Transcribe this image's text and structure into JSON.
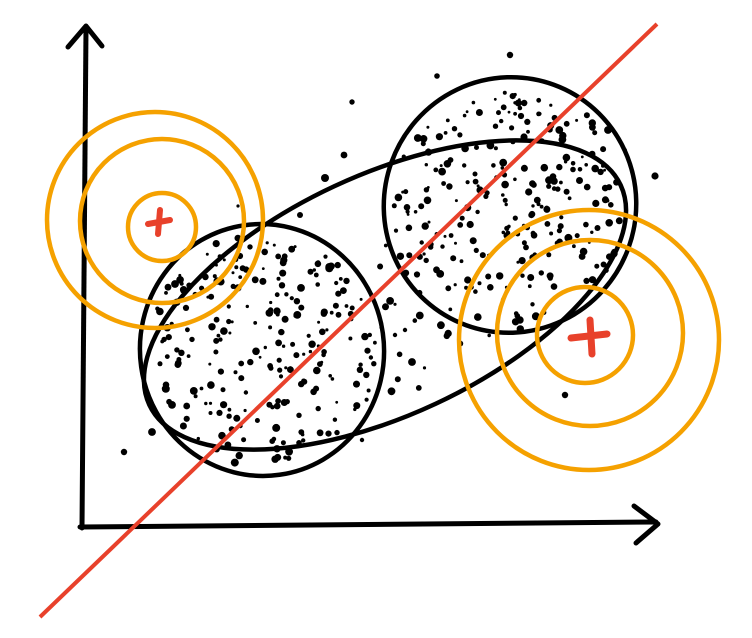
{
  "diagram": {
    "type": "clustering-sketch",
    "colors": {
      "ink": "#000000",
      "separator": "#e8412b",
      "contour": "#f5a100",
      "centroid_marker": "#e8412b"
    },
    "elements": {
      "axes": [
        "y-axis-arrow",
        "x-axis-arrow"
      ],
      "clusters": [
        "left-cluster-ellipse",
        "right-cluster-ellipse",
        "enclosing-ellipse"
      ],
      "separator": "diagonal-separator-line",
      "contour_groups": [
        {
          "name": "top-left-contours",
          "rings": 3,
          "marker": "plus"
        },
        {
          "name": "bottom-right-contours",
          "rings": 3,
          "marker": "plus"
        }
      ],
      "point_marker": "dot"
    }
  }
}
